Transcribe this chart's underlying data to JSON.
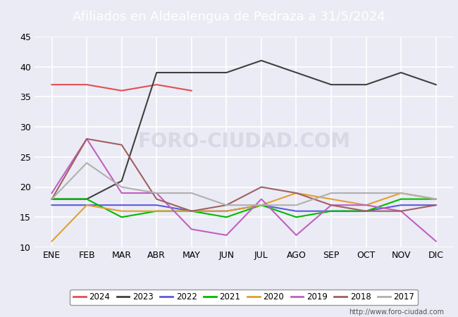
{
  "title": "Afiliados en Aldealengua de Pedraza a 31/5/2024",
  "header_bg": "#4472c4",
  "months": [
    "ENE",
    "FEB",
    "MAR",
    "ABR",
    "MAY",
    "JUN",
    "JUL",
    "AGO",
    "SEP",
    "OCT",
    "NOV",
    "DIC"
  ],
  "ylim": [
    10,
    45
  ],
  "yticks": [
    10,
    15,
    20,
    25,
    30,
    35,
    40,
    45
  ],
  "series": {
    "2024": {
      "color": "#e05050",
      "values": [
        37,
        37,
        36,
        37,
        36,
        null,
        null,
        null,
        null,
        null,
        null,
        null
      ]
    },
    "2023": {
      "color": "#404040",
      "values": [
        18,
        18,
        21,
        39,
        39,
        39,
        41,
        39,
        37,
        37,
        39,
        37
      ]
    },
    "2022": {
      "color": "#5b5bdb",
      "values": [
        17,
        17,
        17,
        17,
        16,
        16,
        17,
        16,
        16,
        16,
        17,
        17
      ]
    },
    "2021": {
      "color": "#00bb00",
      "values": [
        18,
        18,
        15,
        16,
        16,
        15,
        17,
        15,
        16,
        16,
        18,
        18
      ]
    },
    "2020": {
      "color": "#e0a030",
      "values": [
        11,
        17,
        16,
        16,
        16,
        16,
        17,
        19,
        18,
        17,
        19,
        18
      ]
    },
    "2019": {
      "color": "#c060c0",
      "values": [
        19,
        28,
        19,
        19,
        13,
        12,
        18,
        12,
        17,
        17,
        16,
        11
      ]
    },
    "2018": {
      "color": "#a06060",
      "values": [
        18,
        28,
        27,
        18,
        16,
        17,
        20,
        19,
        17,
        16,
        16,
        17
      ]
    },
    "2017": {
      "color": "#b0b0b0",
      "values": [
        18,
        24,
        20,
        19,
        19,
        17,
        17,
        17,
        19,
        19,
        19,
        18
      ]
    }
  },
  "legend_order": [
    "2024",
    "2023",
    "2022",
    "2021",
    "2020",
    "2019",
    "2018",
    "2017"
  ],
  "url": "http://www.foro-ciudad.com",
  "bg_color": "#ebebf5",
  "plot_bg": "#ebebf5",
  "grid_color": "#ffffff"
}
